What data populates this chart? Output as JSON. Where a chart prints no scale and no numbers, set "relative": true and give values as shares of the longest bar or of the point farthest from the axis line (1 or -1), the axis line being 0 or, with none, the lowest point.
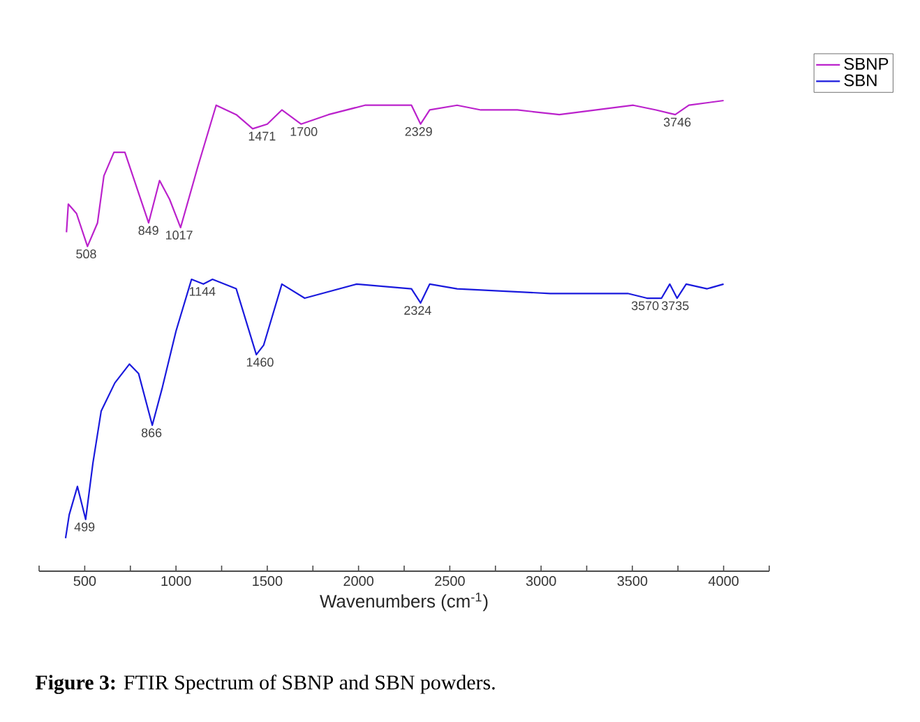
{
  "chart_data": {
    "type": "line",
    "relative": true,
    "xlabel": "Wavenumbers (cm$^{-1}$)",
    "legend": "top right",
    "xlim": [
      250,
      4250
    ],
    "xticks": [
      {
        "value": 250,
        "label": null
      },
      500,
      {
        "value": 750,
        "label": null
      },
      1000,
      {
        "value": 1250,
        "label": null
      },
      1500,
      {
        "value": 1750,
        "label": null
      },
      2000,
      {
        "value": 2250,
        "label": null
      },
      2500,
      {
        "value": 2750,
        "label": null
      },
      3000,
      {
        "value": 3250,
        "label": null
      },
      3500,
      {
        "value": 3750,
        "label": null
      },
      4000,
      {
        "value": 4250,
        "label": null
      }
    ],
    "series": [
      {
        "name": "SBNP",
        "color": "#bb22cc",
        "x": [
          400,
          410,
          455,
          515,
          570,
          605,
          660,
          720,
          850,
          910,
          965,
          1025,
          1120,
          1220,
          1330,
          1420,
          1500,
          1580,
          1685,
          1835,
          2035,
          2290,
          2340,
          2390,
          2540,
          2670,
          2870,
          3100,
          3505,
          3630,
          3735,
          3810,
          4000
        ],
        "values": [
          0.72,
          0.78,
          0.76,
          0.69,
          0.74,
          0.84,
          0.89,
          0.89,
          0.74,
          0.83,
          0.79,
          0.73,
          0.86,
          0.99,
          0.97,
          0.94,
          0.95,
          0.98,
          0.95,
          0.97,
          0.99,
          0.99,
          0.95,
          0.98,
          0.99,
          0.98,
          0.98,
          0.97,
          0.99,
          0.98,
          0.97,
          0.99,
          1
        ]
      },
      {
        "name": "SBN",
        "color": "#1a1add",
        "x": [
          395,
          415,
          460,
          505,
          545,
          590,
          665,
          745,
          795,
          870,
          925,
          1000,
          1085,
          1150,
          1200,
          1330,
          1440,
          1480,
          1580,
          1705,
          1990,
          2290,
          2340,
          2390,
          2540,
          3050,
          3475,
          3580,
          3660,
          3705,
          3745,
          3795,
          3910,
          4000
        ],
        "values": [
          0.07,
          0.12,
          0.18,
          0.11,
          0.23,
          0.34,
          0.4,
          0.44,
          0.42,
          0.31,
          0.39,
          0.51,
          0.62,
          0.61,
          0.62,
          0.6,
          0.46,
          0.48,
          0.61,
          0.58,
          0.61,
          0.6,
          0.57,
          0.61,
          0.6,
          0.59,
          0.59,
          0.58,
          0.58,
          0.61,
          0.58,
          0.61,
          0.6,
          0.61
        ]
      }
    ],
    "annotations": [
      {
        "text": "508",
        "x": 508,
        "y": 0.69
      },
      {
        "text": "849",
        "x": 849,
        "y": 0.74
      },
      {
        "text": "1017",
        "x": 1017,
        "y": 0.73
      },
      {
        "text": "1471",
        "x": 1471,
        "y": 0.94
      },
      {
        "text": "1700",
        "x": 1700,
        "y": 0.95
      },
      {
        "text": "2329",
        "x": 2329,
        "y": 0.95
      },
      {
        "text": "3746",
        "x": 3746,
        "y": 0.97
      },
      {
        "text": "499",
        "x": 499,
        "y": 0.11
      },
      {
        "text": "866",
        "x": 866,
        "y": 0.31
      },
      {
        "text": "1144",
        "x": 1144,
        "y": 0.61
      },
      {
        "text": "1460",
        "x": 1460,
        "y": 0.46
      },
      {
        "text": "2324",
        "x": 2324,
        "y": 0.57
      },
      {
        "text": "3570",
        "x": 3570,
        "y": 0.58
      },
      {
        "text": "3735",
        "x": 3735,
        "y": 0.58
      },
      "**Figure 3:** FTIR Spectrum of SBNP and SBN powders."
    ]
  }
}
